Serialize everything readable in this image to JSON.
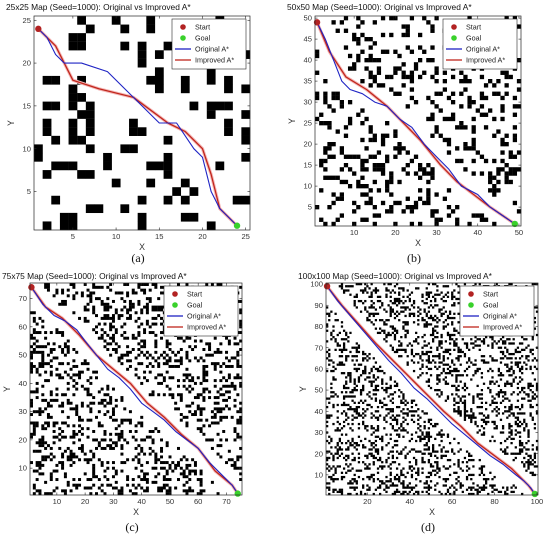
{
  "chart_data": [
    {
      "type": "scatter",
      "title": "25x25 Map (Seed=1000): Original vs Improved A*",
      "xlabel": "X",
      "ylabel": "Y",
      "xlim": [
        0.5,
        25.5
      ],
      "ylim": [
        0.5,
        25.5
      ],
      "xticks": [
        5,
        10,
        15,
        20,
        25
      ],
      "yticks": [
        5,
        10,
        15,
        20,
        25
      ],
      "caption": "(a)",
      "legend": [
        "Start",
        "Goal",
        "Original A*",
        "Improved A*"
      ],
      "legend_position": "top-right",
      "grid": false,
      "start": [
        1,
        24
      ],
      "goal": [
        24,
        1
      ],
      "series": [
        {
          "name": "Original A*",
          "x": [
            1,
            2,
            3,
            4,
            6,
            9,
            11,
            13,
            15,
            17,
            19,
            20,
            21,
            22,
            23,
            24
          ],
          "y": [
            24,
            23,
            21,
            20,
            20,
            19,
            17,
            15,
            13,
            13,
            10,
            9,
            5,
            3,
            2,
            1
          ]
        },
        {
          "name": "Improved A*",
          "x": [
            1,
            3,
            5,
            8,
            12,
            16,
            18,
            20,
            21,
            22,
            24
          ],
          "y": [
            24,
            22,
            18,
            17,
            16,
            13,
            12,
            10,
            7,
            3,
            1
          ]
        }
      ]
    },
    {
      "type": "scatter",
      "title": "50x50 Map (Seed=1000): Original vs Improved A*",
      "xlabel": "X",
      "ylabel": "Y",
      "xlim": [
        0.5,
        50.5
      ],
      "ylim": [
        0.5,
        50.5
      ],
      "xticks": [
        10,
        20,
        30,
        40,
        50
      ],
      "yticks": [
        5,
        10,
        15,
        20,
        25,
        30,
        35,
        40,
        45,
        50
      ],
      "caption": "(b)",
      "legend": [
        "Start",
        "Goal",
        "Original A*",
        "Improved A*"
      ],
      "legend_position": "top-right",
      "grid": false,
      "start": [
        1,
        49
      ],
      "goal": [
        49,
        1
      ],
      "series": [
        {
          "name": "Original A*",
          "x": [
            1,
            3,
            5,
            7,
            9,
            12,
            15,
            18,
            21,
            24,
            27,
            30,
            33,
            36,
            38,
            40,
            43,
            46,
            49
          ],
          "y": [
            49,
            45,
            40,
            35,
            33,
            32,
            30,
            29,
            26,
            24,
            20,
            17,
            14,
            10,
            9,
            8,
            5,
            3,
            1
          ]
        },
        {
          "name": "Improved A*",
          "x": [
            1,
            4,
            8,
            13,
            18,
            22,
            26,
            31,
            35,
            39,
            43,
            49
          ],
          "y": [
            49,
            42,
            36,
            33,
            29,
            25,
            21,
            15,
            11,
            8,
            5,
            1
          ]
        }
      ]
    },
    {
      "type": "scatter",
      "title": "75x75 Map (Seed=1000): Original vs Improved A*",
      "xlabel": "X",
      "ylabel": "Y",
      "xlim": [
        0.5,
        75.5
      ],
      "ylim": [
        0.5,
        75.5
      ],
      "xticks": [
        10,
        20,
        30,
        40,
        50,
        60,
        70
      ],
      "yticks": [
        10,
        20,
        30,
        40,
        50,
        60,
        70
      ],
      "caption": "(c)",
      "legend": [
        "Start",
        "Goal",
        "Original A*",
        "Improved A*"
      ],
      "legend_position": "top-right",
      "grid": false,
      "start": [
        1,
        74
      ],
      "goal": [
        74,
        1
      ],
      "series": [
        {
          "name": "Original A*",
          "x": [
            1,
            5,
            9,
            13,
            17,
            20,
            24,
            28,
            32,
            36,
            40,
            44,
            48,
            52,
            56,
            60,
            64,
            68,
            72,
            74
          ],
          "y": [
            74,
            68,
            64,
            62,
            59,
            55,
            50,
            45,
            42,
            38,
            33,
            30,
            27,
            23,
            20,
            17,
            12,
            8,
            4,
            1
          ]
        },
        {
          "name": "Improved A*",
          "x": [
            1,
            6,
            12,
            18,
            24,
            30,
            36,
            42,
            48,
            54,
            60,
            66,
            72,
            74
          ],
          "y": [
            74,
            67,
            63,
            57,
            50,
            45,
            40,
            33,
            28,
            22,
            17,
            9,
            4,
            1
          ]
        }
      ]
    },
    {
      "type": "scatter",
      "title": "100x100 Map (Seed=1000): Original vs Improved A*",
      "xlabel": "X",
      "ylabel": "Y",
      "xlim": [
        0.5,
        100.5
      ],
      "ylim": [
        0.5,
        100.5
      ],
      "xticks": [
        20,
        40,
        60,
        80,
        100
      ],
      "yticks": [
        10,
        20,
        30,
        40,
        50,
        60,
        70,
        80,
        90,
        100
      ],
      "caption": "(d)",
      "legend": [
        "Start",
        "Goal",
        "Original A*",
        "Improved A*"
      ],
      "legend_position": "top-right",
      "grid": false,
      "start": [
        1,
        99
      ],
      "goal": [
        99,
        1
      ],
      "series": [
        {
          "name": "Original A*",
          "x": [
            1,
            6,
            12,
            18,
            24,
            30,
            36,
            42,
            48,
            54,
            60,
            66,
            72,
            78,
            84,
            90,
            94,
            97,
            99
          ],
          "y": [
            99,
            92,
            85,
            78,
            71,
            64,
            58,
            51,
            46,
            40,
            34,
            29,
            24,
            19,
            15,
            10,
            7,
            4,
            1
          ]
        },
        {
          "name": "Improved A*",
          "x": [
            1,
            8,
            16,
            24,
            32,
            40,
            48,
            56,
            64,
            72,
            80,
            88,
            96,
            99
          ],
          "y": [
            99,
            90,
            81,
            72,
            64,
            56,
            48,
            40,
            33,
            25,
            19,
            13,
            5,
            1
          ]
        }
      ]
    }
  ],
  "colors": {
    "start": "#b22222",
    "goal": "#39d12b",
    "original": "#1f24c4",
    "improved": "#c0261c",
    "obstacle": "#000000"
  }
}
